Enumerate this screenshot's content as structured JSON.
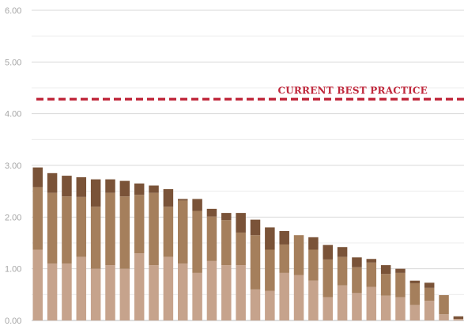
{
  "chart_data": {
    "type": "bar",
    "stacked": true,
    "ylim": [
      0,
      6
    ],
    "yticks": [
      "0.00",
      "1.00",
      "2.00",
      "3.00",
      "4.00",
      "5.00",
      "6.00"
    ],
    "grid": true,
    "series": [
      {
        "color": "#c6a38c",
        "values": [
          1.37,
          1.1,
          1.1,
          1.23,
          1.0,
          1.07,
          1.0,
          1.3,
          1.07,
          1.23,
          1.1,
          0.92,
          1.15,
          1.07,
          1.07,
          0.6,
          0.57,
          0.92,
          0.88,
          0.77,
          0.45,
          0.68,
          0.53,
          0.65,
          0.48,
          0.45,
          0.3,
          0.38,
          0.12,
          0.03
        ]
      },
      {
        "color": "#a57f5c",
        "values": [
          1.21,
          1.37,
          1.3,
          1.16,
          1.2,
          1.4,
          1.4,
          1.13,
          1.4,
          0.97,
          1.22,
          1.2,
          0.86,
          0.87,
          0.63,
          1.05,
          0.8,
          0.55,
          0.77,
          0.6,
          0.73,
          0.55,
          0.5,
          0.47,
          0.42,
          0.47,
          0.42,
          0.25,
          0.37,
          0.0
        ]
      },
      {
        "color": "#7a5338",
        "values": [
          0.38,
          0.38,
          0.4,
          0.38,
          0.53,
          0.26,
          0.3,
          0.22,
          0.14,
          0.34,
          0.03,
          0.23,
          0.15,
          0.14,
          0.38,
          0.3,
          0.43,
          0.26,
          0.0,
          0.24,
          0.28,
          0.19,
          0.19,
          0.07,
          0.17,
          0.08,
          0.05,
          0.1,
          0.0,
          0.05
        ]
      }
    ],
    "reference_line": {
      "value": 4.28,
      "label": "CURRENT BEST PRACTICE",
      "color": "#c0283c"
    }
  }
}
